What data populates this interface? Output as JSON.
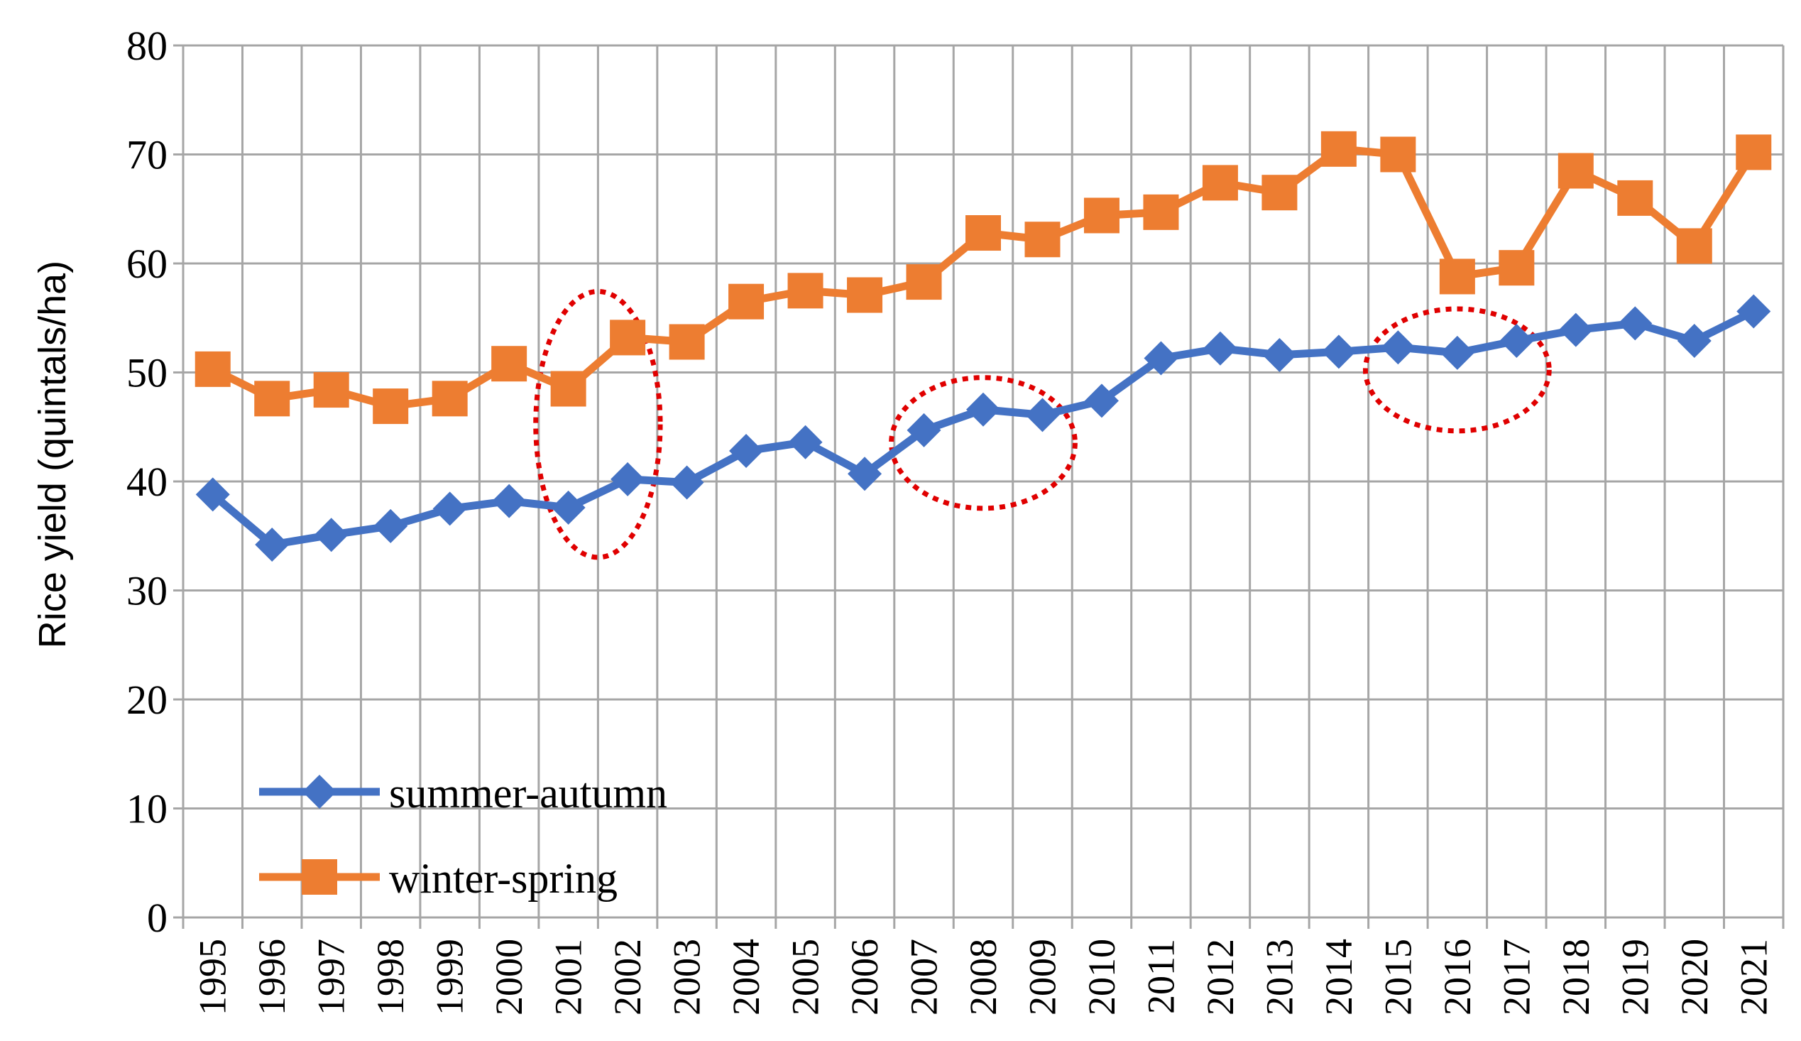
{
  "colors": {
    "summer_autumn": "#4472C4",
    "winter_spring": "#ED7D31",
    "grid": "#A6A6A6",
    "highlight": "#E00000"
  },
  "chart_data": {
    "type": "line",
    "title": "",
    "xlabel": "",
    "ylabel": "Rice yield (quintals/ha)",
    "ylim": [
      0,
      80
    ],
    "yticks": [
      "0",
      "10",
      "20",
      "30",
      "40",
      "50",
      "60",
      "70",
      "80"
    ],
    "grid": true,
    "legend_position": "bottom-left",
    "categories": [
      "1995",
      "1996",
      "1997",
      "1998",
      "1999",
      "2000",
      "2001",
      "2002",
      "2003",
      "2004",
      "2005",
      "2006",
      "2007",
      "2008",
      "2009",
      "2010",
      "2011",
      "2012",
      "2013",
      "2014",
      "2015",
      "2016",
      "2017",
      "2018",
      "2019",
      "2020",
      "2021"
    ],
    "series": [
      {
        "name": "summer-autumn",
        "marker": "diamond",
        "values": [
          38.8,
          34.2,
          35.1,
          35.9,
          37.5,
          38.2,
          37.6,
          40.2,
          39.9,
          42.8,
          43.6,
          40.7,
          44.7,
          46.6,
          46.1,
          47.4,
          51.3,
          52.2,
          51.6,
          51.9,
          52.3,
          51.8,
          52.9,
          53.9,
          54.5,
          52.9,
          55.6
        ]
      },
      {
        "name": "winter-spring",
        "marker": "square",
        "values": [
          50.3,
          47.6,
          48.4,
          46.9,
          47.6,
          50.8,
          48.5,
          53.2,
          52.8,
          56.5,
          57.5,
          57.1,
          58.3,
          62.8,
          62.2,
          64.4,
          64.7,
          67.4,
          66.5,
          70.5,
          70.0,
          58.8,
          59.6,
          68.5,
          66.0,
          61.6,
          70.2
        ]
      }
    ],
    "annotations": [
      {
        "shape": "dotted-ellipse",
        "around_categories": [
          "2001",
          "2002"
        ]
      },
      {
        "shape": "dotted-ellipse",
        "around_categories": [
          "2007",
          "2009"
        ]
      },
      {
        "shape": "dotted-ellipse",
        "around_categories": [
          "2015",
          "2017"
        ]
      }
    ]
  }
}
